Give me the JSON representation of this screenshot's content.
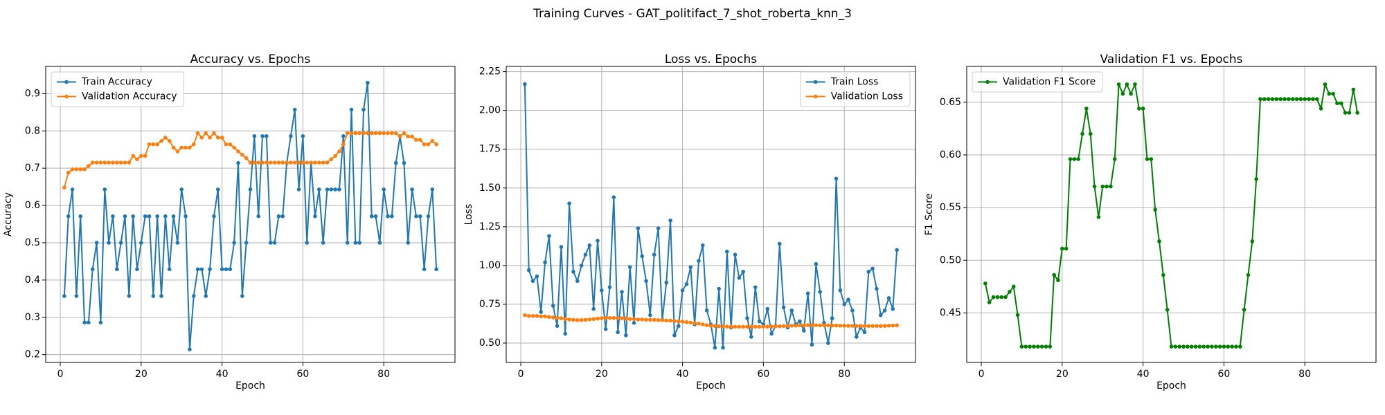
{
  "title": "Training Curves - GAT_politifact_7_shot_roberta_knn_3",
  "chart_data": [
    {
      "type": "line",
      "title": "Accuracy vs. Epochs",
      "xlabel": "Epoch",
      "ylabel": "Accuracy",
      "x": [
        1,
        2,
        3,
        4,
        5,
        6,
        7,
        8,
        9,
        10,
        11,
        12,
        13,
        14,
        15,
        16,
        17,
        18,
        19,
        20,
        21,
        22,
        23,
        24,
        25,
        26,
        27,
        28,
        29,
        30,
        31,
        32,
        33,
        34,
        35,
        36,
        37,
        38,
        39,
        40,
        41,
        42,
        43,
        44,
        45,
        46,
        47,
        48,
        49,
        50,
        51,
        52,
        53,
        54,
        55,
        56,
        57,
        58,
        59,
        60,
        61,
        62,
        63,
        64,
        65,
        66,
        67,
        68,
        69,
        70,
        71,
        72,
        73,
        74,
        75,
        76,
        77,
        78,
        79,
        80,
        81,
        82,
        83,
        84,
        85,
        86,
        87,
        88,
        89,
        90,
        91,
        92,
        93
      ],
      "series": [
        {
          "name": "Train Accuracy",
          "color": "#1f77b4",
          "values": [
            0.357,
            0.571,
            0.643,
            0.357,
            0.571,
            0.286,
            0.286,
            0.429,
            0.5,
            0.286,
            0.643,
            0.5,
            0.571,
            0.429,
            0.5,
            0.571,
            0.357,
            0.571,
            0.429,
            0.5,
            0.571,
            0.571,
            0.357,
            0.571,
            0.357,
            0.571,
            0.429,
            0.571,
            0.5,
            0.643,
            0.571,
            0.214,
            0.357,
            0.429,
            0.429,
            0.357,
            0.429,
            0.571,
            0.643,
            0.429,
            0.429,
            0.429,
            0.5,
            0.714,
            0.357,
            0.5,
            0.643,
            0.786,
            0.571,
            0.786,
            0.786,
            0.5,
            0.5,
            0.571,
            0.571,
            0.714,
            0.786,
            0.857,
            0.643,
            0.786,
            0.5,
            0.714,
            0.571,
            0.643,
            0.5,
            0.643,
            0.643,
            0.643,
            0.643,
            0.786,
            0.5,
            0.857,
            0.5,
            0.5,
            0.857,
            0.929,
            0.571,
            0.571,
            0.5,
            0.643,
            0.571,
            0.571,
            0.714,
            0.786,
            0.714,
            0.5,
            0.643,
            0.571,
            0.571,
            0.429,
            0.571,
            0.643,
            0.429
          ]
        },
        {
          "name": "Validation Accuracy",
          "color": "#ff7f0e",
          "values": [
            0.648,
            0.688,
            0.697,
            0.697,
            0.697,
            0.697,
            0.706,
            0.715,
            0.715,
            0.715,
            0.715,
            0.715,
            0.715,
            0.715,
            0.715,
            0.715,
            0.715,
            0.733,
            0.724,
            0.733,
            0.733,
            0.764,
            0.764,
            0.764,
            0.773,
            0.782,
            0.773,
            0.755,
            0.745,
            0.755,
            0.755,
            0.755,
            0.764,
            0.794,
            0.782,
            0.794,
            0.782,
            0.794,
            0.782,
            0.782,
            0.764,
            0.764,
            0.755,
            0.745,
            0.736,
            0.727,
            0.715,
            0.715,
            0.715,
            0.715,
            0.715,
            0.715,
            0.715,
            0.715,
            0.715,
            0.715,
            0.715,
            0.715,
            0.715,
            0.715,
            0.715,
            0.715,
            0.715,
            0.715,
            0.715,
            0.715,
            0.724,
            0.733,
            0.745,
            0.764,
            0.794,
            0.794,
            0.794,
            0.794,
            0.794,
            0.794,
            0.794,
            0.794,
            0.794,
            0.794,
            0.794,
            0.794,
            0.794,
            0.785,
            0.794,
            0.785,
            0.785,
            0.776,
            0.776,
            0.764,
            0.764,
            0.773,
            0.764
          ]
        }
      ],
      "xlim": [
        -3.6,
        97.6
      ],
      "ylim": [
        0.179,
        0.973
      ],
      "xticks": [
        0,
        20,
        40,
        60,
        80
      ],
      "yticks": [
        0.2,
        0.3,
        0.4,
        0.5,
        0.6,
        0.7,
        0.8,
        0.9
      ],
      "grid": true,
      "legend": "upper left"
    },
    {
      "type": "line",
      "title": "Loss vs. Epochs",
      "xlabel": "Epoch",
      "ylabel": "Loss",
      "x": [
        1,
        2,
        3,
        4,
        5,
        6,
        7,
        8,
        9,
        10,
        11,
        12,
        13,
        14,
        15,
        16,
        17,
        18,
        19,
        20,
        21,
        22,
        23,
        24,
        25,
        26,
        27,
        28,
        29,
        30,
        31,
        32,
        33,
        34,
        35,
        36,
        37,
        38,
        39,
        40,
        41,
        42,
        43,
        44,
        45,
        46,
        47,
        48,
        49,
        50,
        51,
        52,
        53,
        54,
        55,
        56,
        57,
        58,
        59,
        60,
        61,
        62,
        63,
        64,
        65,
        66,
        67,
        68,
        69,
        70,
        71,
        72,
        73,
        74,
        75,
        76,
        77,
        78,
        79,
        80,
        81,
        82,
        83,
        84,
        85,
        86,
        87,
        88,
        89,
        90,
        91,
        92,
        93
      ],
      "series": [
        {
          "name": "Train Loss",
          "color": "#1f77b4",
          "values": [
            2.17,
            0.97,
            0.9,
            0.93,
            0.7,
            1.02,
            1.19,
            0.74,
            0.61,
            1.12,
            0.56,
            1.4,
            0.96,
            0.9,
            1.0,
            1.07,
            1.13,
            0.72,
            1.16,
            0.84,
            0.59,
            0.86,
            1.44,
            0.57,
            0.83,
            0.55,
            0.99,
            0.63,
            1.24,
            1.06,
            0.9,
            0.68,
            1.07,
            1.24,
            0.65,
            0.89,
            1.29,
            0.55,
            0.61,
            0.84,
            0.88,
            0.99,
            0.62,
            1.03,
            1.13,
            0.71,
            0.62,
            0.47,
            0.85,
            0.47,
            1.09,
            0.6,
            1.07,
            0.92,
            0.96,
            0.66,
            0.54,
            0.86,
            0.64,
            0.62,
            0.72,
            0.56,
            0.61,
            1.14,
            0.73,
            0.6,
            0.71,
            0.62,
            0.64,
            0.58,
            0.82,
            0.49,
            1.01,
            0.83,
            0.63,
            0.5,
            0.66,
            1.56,
            0.84,
            0.75,
            0.78,
            0.71,
            0.54,
            0.6,
            0.57,
            0.96,
            0.98,
            0.85,
            0.68,
            0.71,
            0.79,
            0.72,
            1.1
          ]
        },
        {
          "name": "Validation Loss",
          "color": "#ff7f0e",
          "values": [
            0.68,
            0.675,
            0.675,
            0.675,
            0.672,
            0.672,
            0.668,
            0.665,
            0.662,
            0.66,
            0.655,
            0.652,
            0.65,
            0.648,
            0.648,
            0.65,
            0.652,
            0.655,
            0.658,
            0.66,
            0.662,
            0.662,
            0.662,
            0.66,
            0.66,
            0.658,
            0.655,
            0.655,
            0.652,
            0.652,
            0.65,
            0.65,
            0.65,
            0.648,
            0.648,
            0.645,
            0.645,
            0.642,
            0.64,
            0.638,
            0.635,
            0.632,
            0.628,
            0.625,
            0.62,
            0.615,
            0.612,
            0.61,
            0.608,
            0.608,
            0.606,
            0.606,
            0.605,
            0.605,
            0.605,
            0.605,
            0.605,
            0.605,
            0.605,
            0.606,
            0.606,
            0.606,
            0.608,
            0.608,
            0.61,
            0.61,
            0.612,
            0.612,
            0.614,
            0.614,
            0.615,
            0.615,
            0.615,
            0.614,
            0.614,
            0.614,
            0.613,
            0.613,
            0.612,
            0.612,
            0.611,
            0.611,
            0.61,
            0.61,
            0.61,
            0.61,
            0.61,
            0.61,
            0.61,
            0.611,
            0.612,
            0.613,
            0.614
          ]
        }
      ],
      "xlim": [
        -3.6,
        97.6
      ],
      "ylim": [
        0.375,
        2.284
      ],
      "xticks": [
        0,
        20,
        40,
        60,
        80
      ],
      "yticks": [
        {
          "value": 0.5,
          "label": "0.50"
        },
        0.75,
        {
          "value": 1,
          "label": "1.00"
        },
        1.25,
        {
          "value": 1.5,
          "label": "1.50"
        },
        1.75,
        {
          "value": 2,
          "label": "2.00"
        },
        2.25
      ],
      "grid": true,
      "legend": "upper right"
    },
    {
      "type": "line",
      "title": "Validation F1 vs. Epochs",
      "xlabel": "Epoch",
      "ylabel": "F1 Score",
      "x": [
        1,
        2,
        3,
        4,
        5,
        6,
        7,
        8,
        9,
        10,
        11,
        12,
        13,
        14,
        15,
        16,
        17,
        18,
        19,
        20,
        21,
        22,
        23,
        24,
        25,
        26,
        27,
        28,
        29,
        30,
        31,
        32,
        33,
        34,
        35,
        36,
        37,
        38,
        39,
        40,
        41,
        42,
        43,
        44,
        45,
        46,
        47,
        48,
        49,
        50,
        51,
        52,
        53,
        54,
        55,
        56,
        57,
        58,
        59,
        60,
        61,
        62,
        63,
        64,
        65,
        66,
        67,
        68,
        69,
        70,
        71,
        72,
        73,
        74,
        75,
        76,
        77,
        78,
        79,
        80,
        81,
        82,
        83,
        84,
        85,
        86,
        87,
        88,
        89,
        90,
        91,
        92,
        93
      ],
      "series": [
        {
          "name": "Validation F1 Score",
          "color": "#008000",
          "values": [
            0.478,
            0.46,
            0.465,
            0.465,
            0.465,
            0.465,
            0.47,
            0.475,
            0.448,
            0.418,
            0.418,
            0.418,
            0.418,
            0.418,
            0.418,
            0.418,
            0.418,
            0.486,
            0.481,
            0.511,
            0.511,
            0.596,
            0.596,
            0.596,
            0.62,
            0.644,
            0.62,
            0.57,
            0.541,
            0.57,
            0.57,
            0.57,
            0.596,
            0.667,
            0.658,
            0.667,
            0.658,
            0.667,
            0.644,
            0.644,
            0.596,
            0.596,
            0.548,
            0.518,
            0.486,
            0.453,
            0.418,
            0.418,
            0.418,
            0.418,
            0.418,
            0.418,
            0.418,
            0.418,
            0.418,
            0.418,
            0.418,
            0.418,
            0.418,
            0.418,
            0.418,
            0.418,
            0.418,
            0.418,
            0.453,
            0.486,
            0.518,
            0.577,
            0.653,
            0.653,
            0.653,
            0.653,
            0.653,
            0.653,
            0.653,
            0.653,
            0.653,
            0.653,
            0.653,
            0.653,
            0.653,
            0.653,
            0.653,
            0.644,
            0.667,
            0.658,
            0.658,
            0.649,
            0.649,
            0.64,
            0.64,
            0.662,
            0.64
          ]
        }
      ],
      "xlim": [
        -3.6,
        97.6
      ],
      "ylim": [
        0.403,
        0.684
      ],
      "xticks": [
        0,
        20,
        40,
        60,
        80
      ],
      "yticks": [
        0.45,
        {
          "value": 0.5,
          "label": "0.50"
        },
        0.55,
        {
          "value": 0.6,
          "label": "0.60"
        },
        0.65
      ],
      "grid": true,
      "legend": "upper left"
    }
  ]
}
